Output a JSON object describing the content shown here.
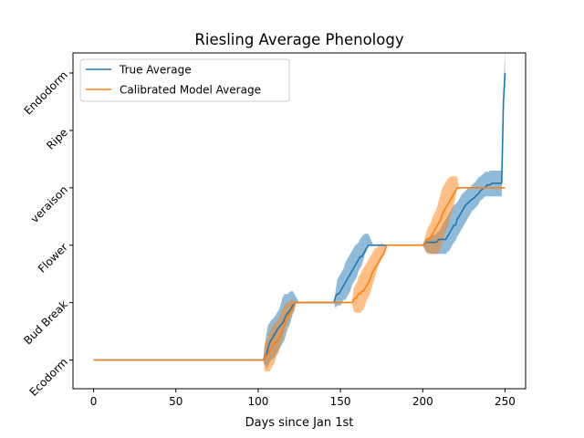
{
  "chart_data": {
    "type": "line",
    "title": "Riesling Average Phenology",
    "xlabel": "Days since Jan 1st",
    "ylabel": "",
    "xlim": [
      -12.5,
      262.5
    ],
    "ylim": [
      -0.5,
      5.35
    ],
    "xticks": [
      0,
      50,
      100,
      150,
      200,
      250
    ],
    "yticks": [
      0,
      1,
      2,
      3,
      4,
      5
    ],
    "ytick_labels": [
      "Ecodorm",
      "Bud Break",
      "Flower",
      "veraison",
      "Ripe",
      "Endodorm"
    ],
    "legend_position": "top-left",
    "grid": false,
    "series": [
      {
        "name": "True Average",
        "color": "#1f77b4",
        "x": [
          0,
          103,
          105,
          106,
          107,
          108,
          109,
          110,
          111,
          112,
          113,
          114,
          115,
          116,
          117,
          118,
          119,
          120,
          121,
          122,
          123,
          124,
          125,
          130,
          140,
          146,
          147,
          148,
          149,
          150,
          151,
          152,
          153,
          154,
          155,
          156,
          157,
          158,
          159,
          160,
          161,
          162,
          163,
          164,
          165,
          166,
          167,
          170,
          180,
          190,
          200,
          202,
          205,
          208,
          210,
          212,
          214,
          215,
          216,
          217,
          218,
          219,
          220,
          221,
          222,
          223,
          224,
          225,
          226,
          227,
          228,
          229,
          230,
          231,
          232,
          233,
          234,
          235,
          236,
          237,
          238,
          239,
          240,
          241,
          242,
          243,
          244,
          245,
          246,
          247,
          248,
          249,
          250
        ],
        "y": [
          0,
          0,
          0.1,
          0.2,
          0.3,
          0.35,
          0.4,
          0.45,
          0.5,
          0.55,
          0.58,
          0.62,
          0.65,
          0.72,
          0.78,
          0.82,
          0.85,
          0.9,
          0.95,
          0.97,
          1.0,
          1.0,
          1.0,
          1.0,
          1.0,
          1.0,
          1.1,
          1.15,
          1.15,
          1.2,
          1.25,
          1.3,
          1.35,
          1.4,
          1.45,
          1.5,
          1.55,
          1.6,
          1.65,
          1.7,
          1.75,
          1.8,
          1.8,
          1.85,
          1.9,
          1.95,
          2.0,
          2.0,
          2.0,
          2.0,
          2.0,
          2.05,
          2.05,
          2.05,
          2.1,
          2.1,
          2.1,
          2.15,
          2.2,
          2.25,
          2.3,
          2.35,
          2.35,
          2.45,
          2.5,
          2.55,
          2.6,
          2.65,
          2.7,
          2.72,
          2.75,
          2.78,
          2.8,
          2.82,
          2.85,
          2.88,
          2.9,
          2.95,
          2.97,
          3.0,
          3.0,
          3.05,
          3.05,
          3.05,
          3.08,
          3.08,
          3.08,
          3.08,
          3.08,
          3.08,
          3.08,
          4.5,
          5.0
        ],
        "band_lower": [
          0,
          0,
          -0.15,
          -0.1,
          -0.05,
          0.0,
          0.02,
          0.05,
          0.1,
          0.15,
          0.2,
          0.25,
          0.3,
          0.35,
          0.45,
          0.55,
          0.6,
          0.7,
          0.8,
          0.85,
          1.0,
          1.0,
          1.0,
          1.0,
          1.0,
          1.0,
          0.9,
          0.95,
          0.95,
          0.95,
          1.0,
          1.05,
          1.05,
          1.1,
          1.15,
          1.2,
          1.3,
          1.35,
          1.4,
          1.45,
          1.55,
          1.6,
          1.65,
          1.75,
          1.85,
          1.9,
          2.0,
          2.0,
          2.0,
          2.0,
          2.0,
          1.88,
          1.85,
          1.85,
          1.85,
          1.85,
          1.85,
          1.88,
          1.9,
          1.95,
          2.0,
          2.05,
          2.08,
          2.15,
          2.2,
          2.25,
          2.3,
          2.35,
          2.4,
          2.45,
          2.5,
          2.55,
          2.6,
          2.62,
          2.65,
          2.68,
          2.72,
          2.78,
          2.8,
          2.82,
          2.85,
          2.85,
          2.85,
          2.85,
          2.85,
          2.85,
          2.85,
          2.85,
          2.85,
          2.85,
          2.85,
          4.3,
          4.75
        ],
        "band_upper": [
          0,
          0,
          0.45,
          0.6,
          0.65,
          0.7,
          0.72,
          0.75,
          0.8,
          0.85,
          0.9,
          1.0,
          1.1,
          1.15,
          1.15,
          1.15,
          1.18,
          1.2,
          1.2,
          1.15,
          1.1,
          1.05,
          1.0,
          1.0,
          1.0,
          1.0,
          1.2,
          1.4,
          1.45,
          1.5,
          1.55,
          1.6,
          1.7,
          1.75,
          1.8,
          1.85,
          1.9,
          1.95,
          2.0,
          2.02,
          2.05,
          2.1,
          2.15,
          2.18,
          2.2,
          2.2,
          2.2,
          2.0,
          2.0,
          2.0,
          2.0,
          2.12,
          2.15,
          2.2,
          2.25,
          2.35,
          2.45,
          2.5,
          2.55,
          2.6,
          2.65,
          2.7,
          2.72,
          2.75,
          2.8,
          2.85,
          2.9,
          2.92,
          2.95,
          2.98,
          3.0,
          3.02,
          3.05,
          3.08,
          3.1,
          3.15,
          3.18,
          3.2,
          3.22,
          3.25,
          3.28,
          3.28,
          3.28,
          3.3,
          3.3,
          3.3,
          3.3,
          3.3,
          3.3,
          3.3,
          3.3,
          4.7,
          5.4
        ]
      },
      {
        "name": "Calibrated Model Average",
        "color": "#ff7f0e",
        "x": [
          0,
          103,
          104,
          106,
          107,
          108,
          109,
          110,
          111,
          112,
          113,
          114,
          115,
          116,
          117,
          118,
          119,
          120,
          121,
          122,
          123,
          124,
          125,
          130,
          140,
          150,
          155,
          157,
          158,
          160,
          161,
          162,
          163,
          164,
          165,
          166,
          167,
          168,
          169,
          170,
          171,
          172,
          173,
          174,
          175,
          176,
          177,
          178,
          180,
          190,
          200,
          203,
          205,
          206,
          208,
          209,
          210,
          211,
          212,
          213,
          214,
          215,
          216,
          217,
          218,
          219,
          220,
          221,
          222,
          223,
          224,
          230,
          240,
          250
        ],
        "y": [
          0,
          0,
          0.05,
          0.1,
          0.15,
          0.2,
          0.25,
          0.3,
          0.3,
          0.35,
          0.4,
          0.45,
          0.55,
          0.6,
          0.7,
          0.75,
          0.8,
          0.85,
          0.9,
          0.95,
          1.0,
          1.0,
          1.0,
          1.0,
          1.0,
          1.0,
          1.0,
          1.0,
          1.05,
          1.1,
          1.15,
          1.15,
          1.2,
          1.2,
          1.25,
          1.3,
          1.35,
          1.4,
          1.5,
          1.55,
          1.6,
          1.65,
          1.7,
          1.75,
          1.8,
          1.85,
          1.9,
          2.0,
          2.0,
          2.0,
          2.0,
          2.1,
          2.15,
          2.2,
          2.3,
          2.35,
          2.4,
          2.45,
          2.55,
          2.6,
          2.65,
          2.7,
          2.75,
          2.8,
          2.85,
          2.9,
          2.95,
          3.0,
          3.0,
          3.0,
          3.0,
          3.0,
          3.0,
          3.0
        ],
        "band_lower": [
          0,
          0,
          -0.2,
          -0.2,
          -0.2,
          -0.15,
          -0.1,
          -0.05,
          0.05,
          0.1,
          0.2,
          0.3,
          0.4,
          0.5,
          0.6,
          0.65,
          0.7,
          0.75,
          0.85,
          0.9,
          1.0,
          1.0,
          1.0,
          1.0,
          1.0,
          1.0,
          1.0,
          1.0,
          0.85,
          0.82,
          0.82,
          0.82,
          0.85,
          0.88,
          0.95,
          1.05,
          1.1,
          1.15,
          1.25,
          1.35,
          1.45,
          1.55,
          1.65,
          1.7,
          1.75,
          1.8,
          1.85,
          2.0,
          2.0,
          2.0,
          2.0,
          1.85,
          1.85,
          1.85,
          1.85,
          1.85,
          1.9,
          1.95,
          2.05,
          2.15,
          2.25,
          2.3,
          2.4,
          2.5,
          2.6,
          2.7,
          2.85,
          3.0,
          3.0,
          3.0,
          3.0,
          3.0,
          3.0,
          3.0
        ],
        "band_upper": [
          0,
          0,
          0.3,
          0.4,
          0.5,
          0.55,
          0.6,
          0.65,
          0.65,
          0.7,
          0.75,
          0.85,
          0.9,
          0.95,
          1.0,
          1.0,
          1.02,
          1.05,
          1.05,
          1.05,
          1.0,
          1.0,
          1.0,
          1.0,
          1.0,
          1.0,
          1.0,
          1.0,
          1.25,
          1.35,
          1.45,
          1.5,
          1.55,
          1.6,
          1.65,
          1.7,
          1.75,
          1.8,
          1.85,
          1.9,
          1.95,
          1.95,
          2.0,
          2.0,
          2.05,
          2.0,
          2.0,
          2.0,
          2.0,
          2.0,
          2.0,
          2.3,
          2.4,
          2.5,
          2.6,
          2.7,
          2.8,
          2.9,
          3.0,
          3.05,
          3.1,
          3.15,
          3.18,
          3.2,
          3.2,
          3.2,
          3.2,
          3.2,
          3.0,
          3.0,
          3.0,
          3.0,
          3.0,
          3.0
        ]
      }
    ]
  }
}
